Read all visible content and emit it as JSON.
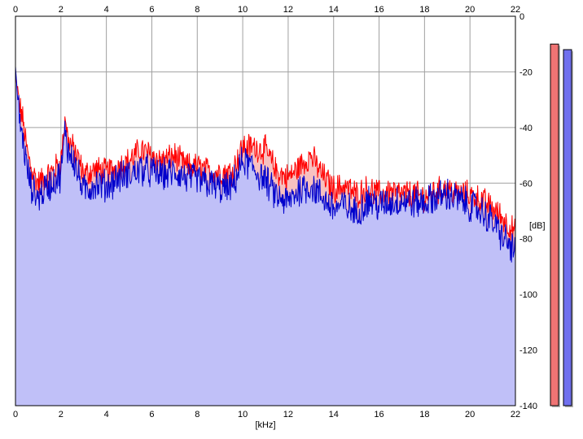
{
  "chart_data": {
    "type": "area",
    "xlabel": "[kHz]",
    "ylabel": "[dB]",
    "xlim": [
      0,
      22
    ],
    "ylim": [
      -140,
      0
    ],
    "x_ticks": [
      0,
      2,
      4,
      6,
      8,
      10,
      12,
      14,
      16,
      18,
      20,
      22
    ],
    "y_ticks": [
      0,
      -20,
      -40,
      -60,
      -80,
      -100,
      -120,
      -140
    ],
    "grid": true,
    "x": [
      0,
      0.1,
      0.2,
      0.3,
      0.5,
      0.7,
      1.0,
      1.3,
      1.6,
      2.0,
      2.2,
      2.3,
      2.5,
      2.8,
      3.0,
      3.5,
      4.0,
      4.5,
      5.0,
      5.5,
      6.0,
      6.5,
      7.0,
      7.5,
      8.0,
      8.5,
      9.0,
      9.5,
      10.0,
      10.5,
      11.0,
      11.5,
      12.0,
      12.5,
      13.0,
      13.5,
      14.0,
      14.5,
      15.0,
      15.5,
      16.0,
      16.5,
      17.0,
      17.5,
      18.0,
      18.5,
      19.0,
      19.5,
      20.0,
      20.5,
      21.0,
      21.5,
      22.0
    ],
    "series": [
      {
        "color": "#ff0000",
        "values": [
          -20,
          -28,
          -33,
          -36,
          -48,
          -55,
          -60,
          -58,
          -56,
          -52,
          -36,
          -44,
          -47,
          -52,
          -57,
          -55,
          -56,
          -54,
          -52,
          -48,
          -50,
          -52,
          -50,
          -54,
          -54,
          -56,
          -56,
          -56,
          -47,
          -47,
          -48,
          -56,
          -58,
          -54,
          -50,
          -57,
          -62,
          -61,
          -64,
          -62,
          -64,
          -63,
          -64,
          -64,
          -65,
          -63,
          -62,
          -64,
          -64,
          -66,
          -69,
          -73,
          -78
        ]
      },
      {
        "color": "#0000cc",
        "values": [
          -18,
          -30,
          -38,
          -43,
          -54,
          -62,
          -65,
          -62,
          -60,
          -57,
          -40,
          -48,
          -50,
          -58,
          -63,
          -60,
          -61,
          -58,
          -57,
          -55,
          -56,
          -57,
          -56,
          -58,
          -59,
          -60,
          -62,
          -62,
          -52,
          -55,
          -59,
          -65,
          -67,
          -62,
          -61,
          -65,
          -69,
          -68,
          -71,
          -66,
          -68,
          -67,
          -66,
          -67,
          -67,
          -65,
          -64,
          -66,
          -68,
          -70,
          -74,
          -80,
          -85
        ]
      }
    ],
    "meters": [
      {
        "color": "#ef7474",
        "level_db": -10
      },
      {
        "color": "#7070ee",
        "level_db": -12
      }
    ],
    "colors": {
      "fill_blue": "#c0c0f8",
      "fill_red": "#f8c0c0",
      "grid": "#a0a0a0",
      "axis": "#000000"
    }
  }
}
